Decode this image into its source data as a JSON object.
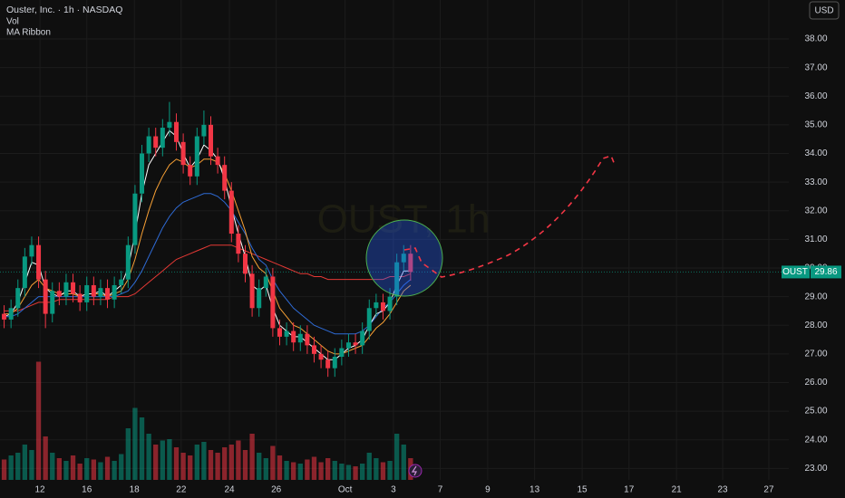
{
  "chart_data": {
    "type": "candlestick",
    "title": "Ouster, Inc. · 1h · NASDAQ",
    "indicators": [
      "Vol",
      "MA Ribbon"
    ],
    "currency": "USD",
    "symbol": "OUST",
    "watermark": "OUST, 1h",
    "up_color": "#089981",
    "down_color": "#f23645",
    "open": [
      28.4,
      28.2,
      28.6,
      29.3,
      30.4,
      30.8,
      29.6,
      28.4,
      29.2,
      29.0,
      29.5,
      29.1,
      28.8,
      29.4,
      29.0,
      29.3,
      28.9,
      29.4,
      29.6,
      30.8,
      32.6,
      34.0,
      34.6,
      34.2,
      34.9,
      35.1,
      34.4,
      33.6,
      33.2,
      34.6,
      35.0,
      33.9,
      33.6,
      32.7,
      31.2,
      30.5,
      29.8,
      28.6,
      29.3,
      29.7,
      27.9,
      27.6,
      27.8,
      27.4,
      27.7,
      27.3,
      27.0,
      26.8,
      26.5,
      26.9,
      27.2,
      27.4,
      27.3,
      27.8,
      28.6,
      28.8,
      28.5,
      29.0,
      30.2,
      30.5
    ],
    "high": [
      28.7,
      28.9,
      29.6,
      30.7,
      31.1,
      31.1,
      29.9,
      29.5,
      29.5,
      29.8,
      29.8,
      29.4,
      29.7,
      29.7,
      29.6,
      29.6,
      29.7,
      29.9,
      31.1,
      32.9,
      34.3,
      34.9,
      34.9,
      35.2,
      35.8,
      35.4,
      34.7,
      33.9,
      34.9,
      35.5,
      35.3,
      34.2,
      33.9,
      33.0,
      31.5,
      30.8,
      30.1,
      29.6,
      30.0,
      30.0,
      28.2,
      28.1,
      28.1,
      28.0,
      28.0,
      27.6,
      27.3,
      27.1,
      27.2,
      27.5,
      27.7,
      27.7,
      28.1,
      28.9,
      29.1,
      29.1,
      29.3,
      30.5,
      30.8,
      30.8
    ],
    "low": [
      27.9,
      27.9,
      28.3,
      29.0,
      30.1,
      29.3,
      27.9,
      28.1,
      28.7,
      28.7,
      28.8,
      28.5,
      28.5,
      28.7,
      28.7,
      28.6,
      28.6,
      29.1,
      29.3,
      30.5,
      32.3,
      33.7,
      33.9,
      33.9,
      34.6,
      34.1,
      33.3,
      32.9,
      32.9,
      34.3,
      33.6,
      33.3,
      32.4,
      30.9,
      30.2,
      29.5,
      28.3,
      28.3,
      29.0,
      27.6,
      27.3,
      27.3,
      27.1,
      27.1,
      27.0,
      26.7,
      26.5,
      26.2,
      26.2,
      26.6,
      26.9,
      27.0,
      27.0,
      27.5,
      28.3,
      28.2,
      28.2,
      28.7,
      29.9,
      29.56
    ],
    "close": [
      28.2,
      28.6,
      29.3,
      30.4,
      30.8,
      29.6,
      28.4,
      29.2,
      29.0,
      29.5,
      29.1,
      28.8,
      29.4,
      29.0,
      29.3,
      28.9,
      29.4,
      29.6,
      30.8,
      32.6,
      34.0,
      34.6,
      34.2,
      34.9,
      35.1,
      34.4,
      33.6,
      33.2,
      34.6,
      35.0,
      33.9,
      33.6,
      32.7,
      31.2,
      30.5,
      29.8,
      28.6,
      29.3,
      29.7,
      27.9,
      27.6,
      27.8,
      27.4,
      27.7,
      27.3,
      27.0,
      26.8,
      26.5,
      26.9,
      27.2,
      27.4,
      27.3,
      27.8,
      28.6,
      28.8,
      28.5,
      29.0,
      30.2,
      30.5,
      29.86
    ],
    "volume": [
      1.5,
      1.8,
      2.0,
      2.6,
      2.2,
      8.7,
      3.2,
      2.0,
      1.6,
      1.4,
      1.8,
      1.2,
      1.6,
      1.5,
      1.3,
      1.7,
      1.4,
      1.9,
      3.8,
      5.3,
      4.6,
      3.4,
      2.6,
      2.9,
      3.0,
      2.4,
      2.0,
      1.8,
      2.6,
      2.8,
      2.2,
      2.0,
      2.4,
      2.6,
      2.9,
      2.2,
      3.4,
      2.0,
      1.6,
      2.5,
      1.8,
      1.4,
      1.3,
      1.2,
      1.5,
      1.7,
      1.3,
      1.6,
      1.4,
      1.2,
      1.1,
      1.0,
      1.2,
      2.0,
      1.6,
      1.3,
      1.4,
      3.4,
      2.6,
      1.6
    ],
    "volume_lim": [
      0,
      10
    ],
    "series": [
      {
        "color": "#ffffff",
        "values": [
          28.3,
          28.4,
          28.8,
          29.5,
          30.2,
          30.1,
          29.3,
          29.1,
          29.0,
          29.2,
          29.2,
          29.0,
          29.1,
          29.1,
          29.2,
          29.0,
          29.2,
          29.4,
          30.0,
          31.2,
          32.6,
          33.6,
          34.0,
          34.4,
          34.8,
          34.6,
          34.0,
          33.5,
          33.8,
          34.3,
          34.1,
          33.8,
          33.1,
          32.1,
          31.2,
          30.4,
          29.4,
          29.2,
          29.4,
          28.6,
          28.0,
          27.8,
          27.6,
          27.6,
          27.4,
          27.2,
          27.0,
          26.8,
          26.8,
          27.0,
          27.2,
          27.3,
          27.5,
          28.0,
          28.4,
          28.5,
          28.8,
          29.4,
          29.9,
          29.9
        ]
      },
      {
        "color": "#f7a035",
        "values": [
          28.4,
          28.4,
          28.6,
          29.0,
          29.4,
          29.6,
          29.3,
          29.2,
          29.1,
          29.1,
          29.1,
          29.0,
          29.1,
          29.1,
          29.1,
          29.0,
          29.1,
          29.2,
          29.6,
          30.3,
          31.2,
          32.0,
          32.7,
          33.2,
          33.6,
          33.8,
          33.7,
          33.5,
          33.6,
          33.8,
          33.8,
          33.7,
          33.3,
          32.7,
          32.0,
          31.3,
          30.4,
          30.0,
          29.8,
          29.2,
          28.6,
          28.3,
          28.0,
          27.9,
          27.7,
          27.5,
          27.3,
          27.1,
          27.0,
          27.0,
          27.1,
          27.2,
          27.3,
          27.6,
          27.9,
          28.1,
          28.4,
          28.8,
          29.2,
          29.4
        ]
      },
      {
        "color": "#2f6bd6",
        "values": [
          28.3,
          28.3,
          28.4,
          28.6,
          28.8,
          29.0,
          29.0,
          29.0,
          29.0,
          29.0,
          29.0,
          29.0,
          29.0,
          29.0,
          29.0,
          29.0,
          29.0,
          29.1,
          29.2,
          29.5,
          29.9,
          30.4,
          30.9,
          31.4,
          31.8,
          32.1,
          32.3,
          32.4,
          32.5,
          32.6,
          32.6,
          32.5,
          32.3,
          32.0,
          31.6,
          31.2,
          30.7,
          30.3,
          30.1,
          29.6,
          29.2,
          28.9,
          28.6,
          28.4,
          28.2,
          28.0,
          27.9,
          27.8,
          27.7,
          27.7,
          27.7,
          27.7,
          27.8,
          28.0,
          28.3,
          28.6,
          28.8,
          29.1,
          29.4,
          29.6
        ]
      },
      {
        "color": "#e53935",
        "values": [
          28.5,
          28.5,
          28.5,
          28.6,
          28.7,
          28.8,
          28.8,
          28.8,
          28.9,
          28.9,
          28.9,
          28.9,
          28.9,
          28.9,
          28.9,
          28.9,
          29.0,
          29.0,
          29.0,
          29.1,
          29.3,
          29.5,
          29.7,
          29.9,
          30.1,
          30.3,
          30.4,
          30.5,
          30.6,
          30.7,
          30.8,
          30.8,
          30.8,
          30.8,
          30.7,
          30.6,
          30.5,
          30.4,
          30.3,
          30.2,
          30.1,
          30.0,
          29.9,
          29.8,
          29.8,
          29.7,
          29.7,
          29.6,
          29.6,
          29.6,
          29.6,
          29.6,
          29.6,
          29.6,
          29.6,
          29.6,
          29.7,
          29.7,
          29.7,
          29.8
        ]
      }
    ],
    "xlim": [
      -0.6,
      113.9
    ],
    "xticks": [
      {
        "value": 5.2,
        "label": "12"
      },
      {
        "value": 12.0,
        "label": "16"
      },
      {
        "value": 18.9,
        "label": "18"
      },
      {
        "value": 25.7,
        "label": "22"
      },
      {
        "value": 32.7,
        "label": "24"
      },
      {
        "value": 39.5,
        "label": "26"
      },
      {
        "value": 49.5,
        "label": "Oct"
      },
      {
        "value": 56.5,
        "label": "3"
      },
      {
        "value": 63.3,
        "label": "7"
      },
      {
        "value": 70.2,
        "label": "9"
      },
      {
        "value": 77.0,
        "label": "13"
      },
      {
        "value": 83.9,
        "label": "15"
      },
      {
        "value": 90.7,
        "label": "17"
      },
      {
        "value": 97.6,
        "label": "21"
      },
      {
        "value": 104.3,
        "label": "23"
      },
      {
        "value": 111.0,
        "label": "27"
      }
    ],
    "ylim": [
      22.6,
      39.36
    ],
    "yticks": [
      {
        "value": 23,
        "label": "23.00"
      },
      {
        "value": 24,
        "label": "24.00"
      },
      {
        "value": 25,
        "label": "25.00"
      },
      {
        "value": 26,
        "label": "26.00"
      },
      {
        "value": 27,
        "label": "27.00"
      },
      {
        "value": 28,
        "label": "28.00"
      },
      {
        "value": 29,
        "label": "29.00"
      },
      {
        "value": 30,
        "label": "30.00"
      },
      {
        "value": 31,
        "label": "31.00"
      },
      {
        "value": 32,
        "label": "32.00"
      },
      {
        "value": 33,
        "label": "33.00"
      },
      {
        "value": 34,
        "label": "34.00"
      },
      {
        "value": 35,
        "label": "35.00"
      },
      {
        "value": 36,
        "label": "36.00"
      },
      {
        "value": 37,
        "label": "37.00"
      },
      {
        "value": 38,
        "label": "38.00"
      }
    ],
    "grid": true
  }
}
